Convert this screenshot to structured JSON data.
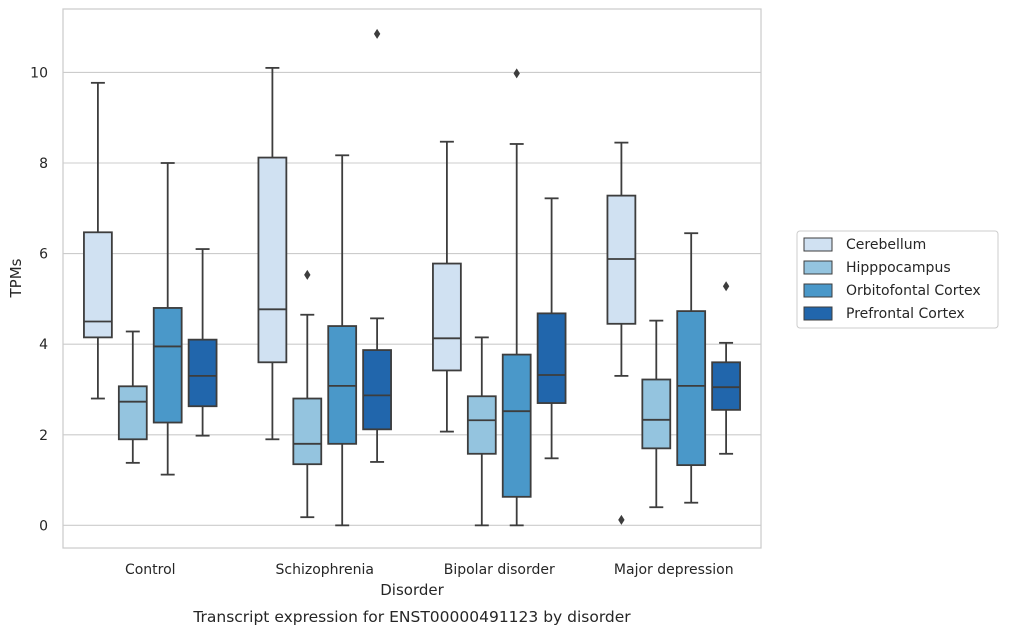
{
  "chart_data": {
    "type": "boxplot",
    "title": "",
    "caption": "Transcript expression for ENST00000491123 by disorder",
    "xlabel": "Disorder",
    "ylabel": "TPMs",
    "ylim": [
      -0.5,
      11.4
    ],
    "yticks": [
      0,
      2,
      4,
      6,
      8,
      10
    ],
    "grid": "horizontal",
    "legend_position": "right",
    "categories": [
      "Control",
      "Schizophrenia",
      "Bipolar disorder",
      "Major depression"
    ],
    "series": [
      {
        "name": "Cerebellum",
        "color": "#d0e1f2",
        "boxes": [
          {
            "whisker_low": 2.8,
            "q1": 4.15,
            "median": 4.5,
            "q3": 6.47,
            "whisker_high": 9.77,
            "outliers": []
          },
          {
            "whisker_low": 1.9,
            "q1": 3.6,
            "median": 4.77,
            "q3": 8.12,
            "whisker_high": 10.1,
            "outliers": []
          },
          {
            "whisker_low": 2.07,
            "q1": 3.42,
            "median": 4.13,
            "q3": 5.78,
            "whisker_high": 8.47,
            "outliers": []
          },
          {
            "whisker_low": 3.3,
            "q1": 4.45,
            "median": 5.88,
            "q3": 7.28,
            "whisker_high": 8.45,
            "outliers": [
              0.12
            ]
          }
        ]
      },
      {
        "name": "Hipppocampus",
        "color": "#94c4df",
        "boxes": [
          {
            "whisker_low": 1.38,
            "q1": 1.9,
            "median": 2.73,
            "q3": 3.07,
            "whisker_high": 4.28,
            "outliers": []
          },
          {
            "whisker_low": 0.18,
            "q1": 1.35,
            "median": 1.8,
            "q3": 2.8,
            "whisker_high": 4.65,
            "outliers": [
              5.53
            ]
          },
          {
            "whisker_low": 0.0,
            "q1": 1.58,
            "median": 2.32,
            "q3": 2.85,
            "whisker_high": 4.15,
            "outliers": []
          },
          {
            "whisker_low": 0.4,
            "q1": 1.7,
            "median": 2.33,
            "q3": 3.22,
            "whisker_high": 4.52,
            "outliers": []
          }
        ]
      },
      {
        "name": "Orbitofontal Cortex",
        "color": "#4a98c9",
        "boxes": [
          {
            "whisker_low": 1.12,
            "q1": 2.27,
            "median": 3.95,
            "q3": 4.8,
            "whisker_high": 8.0,
            "outliers": []
          },
          {
            "whisker_low": 0.0,
            "q1": 1.8,
            "median": 3.08,
            "q3": 4.4,
            "whisker_high": 8.17,
            "outliers": []
          },
          {
            "whisker_low": 0.0,
            "q1": 0.63,
            "median": 2.52,
            "q3": 3.77,
            "whisker_high": 8.42,
            "outliers": [
              9.98
            ]
          },
          {
            "whisker_low": 0.5,
            "q1": 1.33,
            "median": 3.08,
            "q3": 4.73,
            "whisker_high": 6.45,
            "outliers": []
          }
        ]
      },
      {
        "name": "Prefrontal Cortex",
        "color": "#2166ac",
        "boxes": [
          {
            "whisker_low": 1.98,
            "q1": 2.63,
            "median": 3.3,
            "q3": 4.1,
            "whisker_high": 6.1,
            "outliers": []
          },
          {
            "whisker_low": 1.4,
            "q1": 2.12,
            "median": 2.87,
            "q3": 3.87,
            "whisker_high": 4.57,
            "outliers": [
              10.85
            ]
          },
          {
            "whisker_low": 1.48,
            "q1": 2.7,
            "median": 3.32,
            "q3": 4.68,
            "whisker_high": 7.22,
            "outliers": []
          },
          {
            "whisker_low": 1.58,
            "q1": 2.55,
            "median": 3.05,
            "q3": 3.6,
            "whisker_high": 4.03,
            "outliers": [
              5.28
            ]
          }
        ]
      }
    ]
  }
}
